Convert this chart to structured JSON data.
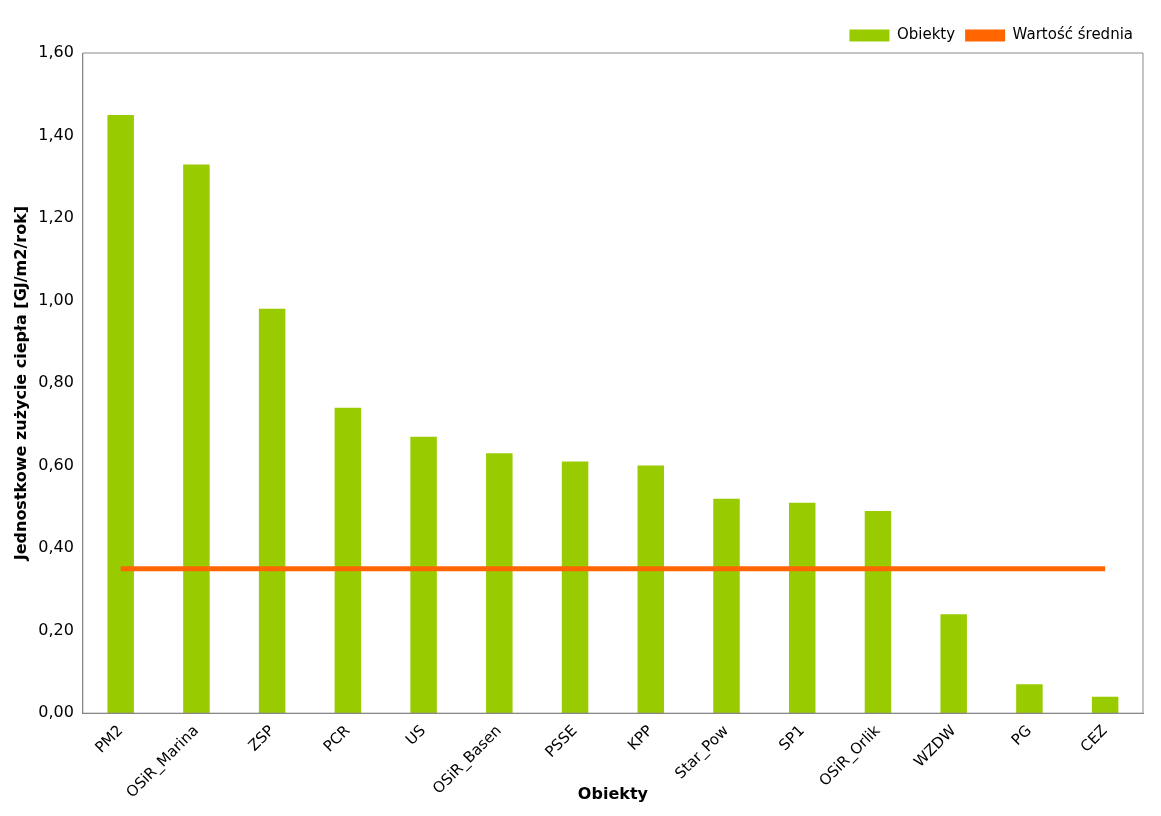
{
  "chart_data": {
    "type": "bar",
    "xlabel": "Obiekty",
    "ylabel": "Jednostkowe zużycie ciepła [GJ/m2/rok]",
    "categories": [
      "PM2",
      "OSiR_Marina",
      "ZSP",
      "PCR",
      "US",
      "OSiR_Basen",
      "PSSE",
      "KPP",
      "Star_Pow",
      "SP1",
      "OSiR_Orlik",
      "WZDW",
      "PG",
      "CEZ"
    ],
    "series": [
      {
        "name": "Obiekty",
        "color": "#99cc00",
        "values": [
          1.45,
          1.33,
          0.98,
          0.74,
          0.67,
          0.63,
          0.61,
          0.6,
          0.52,
          0.51,
          0.49,
          0.24,
          0.07,
          0.04
        ]
      },
      {
        "name": "Wartość średnia",
        "type": "line",
        "color": "#ff6600",
        "marker": "none",
        "values": [
          0.35,
          0.35,
          0.35,
          0.35,
          0.35,
          0.35,
          0.35,
          0.35,
          0.35,
          0.35,
          0.35,
          0.35,
          0.35,
          0.35
        ]
      }
    ],
    "ylim": [
      0,
      1.6
    ],
    "yticks": [
      {
        "value": 0,
        "label": "0,00"
      },
      {
        "value": 0.2,
        "label": "0,20"
      },
      {
        "value": 0.4,
        "label": "0,40"
      },
      {
        "value": 0.6,
        "label": "0,60"
      },
      {
        "value": 0.8,
        "label": "0,80"
      },
      {
        "value": 1,
        "label": "1,00"
      },
      {
        "value": 1.2,
        "label": "1,20"
      },
      {
        "value": 1.4,
        "label": "1,40"
      },
      {
        "value": 1.6,
        "label": "1,60"
      }
    ],
    "grid": false,
    "legend": "top right"
  }
}
